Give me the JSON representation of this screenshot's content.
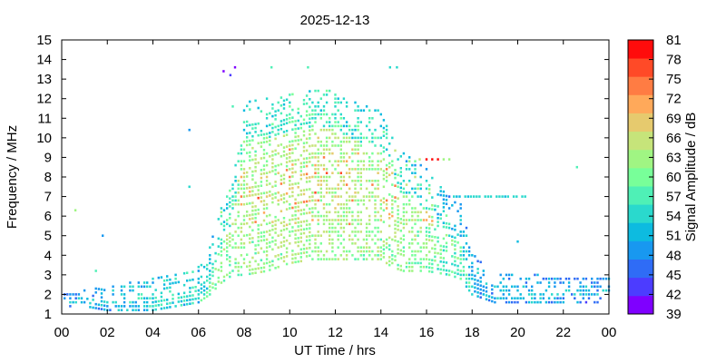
{
  "chart_data": {
    "type": "heatmap",
    "title": "2025-12-13",
    "xlabel": "UT Time / hrs",
    "ylabel": "Frequency / MHz",
    "colorbar_label": "Signal Amplitude / dB",
    "xlim": [
      0,
      24
    ],
    "ylim": [
      1,
      15
    ],
    "x_ticks": [
      "00",
      "02",
      "04",
      "06",
      "08",
      "10",
      "12",
      "14",
      "16",
      "18",
      "20",
      "22",
      "00"
    ],
    "y_ticks": [
      "1",
      "2",
      "3",
      "4",
      "5",
      "6",
      "7",
      "8",
      "9",
      "10",
      "11",
      "12",
      "13",
      "14",
      "15"
    ],
    "colorbar_ticks": [
      "39",
      "42",
      "45",
      "48",
      "51",
      "54",
      "57",
      "60",
      "63",
      "66",
      "69",
      "72",
      "75",
      "78",
      "81"
    ],
    "colorbar_range": [
      39,
      81
    ],
    "colorbar_colors": [
      "#7f00ff",
      "#4c3cff",
      "#2f6cf6",
      "#1898f0",
      "#0dbbe0",
      "#2ad9cd",
      "#4ff0b6",
      "#78ff99",
      "#a0f583",
      "#c6e47a",
      "#e6ca6e",
      "#ffa95a",
      "#ff7c43",
      "#ff4a27",
      "#ff0c0c"
    ],
    "grid": false,
    "time_step_hrs": 0.125,
    "freq_step_mhz": 0.2,
    "envelope": {
      "hours": [
        0,
        1,
        2,
        3,
        4,
        5,
        6,
        6.5,
        7,
        7.5,
        8,
        9,
        10,
        11,
        12,
        13,
        14,
        14.5,
        15,
        16,
        17,
        17.5,
        18,
        19,
        20,
        21,
        22,
        23,
        24
      ],
      "min_mhz": [
        1.4,
        1.4,
        1.2,
        1.2,
        1.2,
        1.4,
        1.6,
        2.0,
        2.6,
        3.0,
        3.0,
        3.2,
        3.6,
        3.8,
        3.8,
        3.8,
        3.8,
        3.4,
        3.2,
        3.2,
        3.0,
        2.8,
        2.0,
        1.6,
        1.6,
        1.6,
        1.6,
        1.6,
        1.6
      ],
      "max_mhz": [
        2.0,
        2.2,
        2.4,
        2.6,
        2.8,
        3.0,
        3.5,
        4.5,
        6.4,
        7.8,
        11.8,
        12.0,
        12.2,
        12.6,
        12.4,
        11.8,
        11.4,
        10.0,
        9.2,
        8.4,
        7.0,
        6.6,
        4.2,
        3.2,
        3.0,
        3.0,
        2.8,
        2.8,
        2.8
      ],
      "amp_db": [
        54,
        54,
        56,
        57,
        58,
        58,
        58,
        59,
        60,
        60,
        61,
        61,
        62,
        62,
        62,
        61,
        61,
        61,
        60,
        59,
        57,
        56,
        55,
        55,
        55,
        55,
        54,
        54,
        54
      ]
    },
    "extra_features": [
      {
        "hour": 7.1,
        "mhz": 13.4,
        "db": 40
      },
      {
        "hour": 7.6,
        "mhz": 13.6,
        "db": 40
      },
      {
        "hour": 7.4,
        "mhz": 13.2,
        "db": 42
      },
      {
        "hour": 5.6,
        "mhz": 10.4,
        "db": 48
      },
      {
        "hour": 5.6,
        "mhz": 7.5,
        "db": 54
      },
      {
        "hour": 22.6,
        "mhz": 8.5,
        "db": 57
      },
      {
        "hour": 9.2,
        "mhz": 13.6,
        "db": 56
      },
      {
        "hour": 10.8,
        "mhz": 13.6,
        "db": 57
      },
      {
        "hour": 14.4,
        "mhz": 13.6,
        "db": 55
      },
      {
        "hour": 14.7,
        "mhz": 13.6,
        "db": 54
      },
      {
        "hour": 16.0,
        "mhz": 8.9,
        "db": 79
      },
      {
        "hour": 16.25,
        "mhz": 8.9,
        "db": 79
      },
      {
        "hour": 16.5,
        "mhz": 8.9,
        "db": 79
      },
      {
        "hour": 15.7,
        "mhz": 8.9,
        "db": 66
      },
      {
        "hour": 16.75,
        "mhz": 8.9,
        "db": 64
      },
      {
        "hour": 17.0,
        "mhz": 8.9,
        "db": 64
      },
      {
        "hour": 0.6,
        "mhz": 6.3,
        "db": 63
      },
      {
        "hour": 1.8,
        "mhz": 5.0,
        "db": 48
      },
      {
        "hour": 1.5,
        "mhz": 3.2,
        "db": 57
      },
      {
        "hour": 20.0,
        "mhz": 4.7,
        "db": 51
      },
      {
        "hour": 7.5,
        "mhz": 11.6,
        "db": 57
      }
    ],
    "plateau_7mhz": {
      "from_hour": 17.2,
      "to_hour": 20.4,
      "mhz": 7.0,
      "db": 54
    }
  }
}
